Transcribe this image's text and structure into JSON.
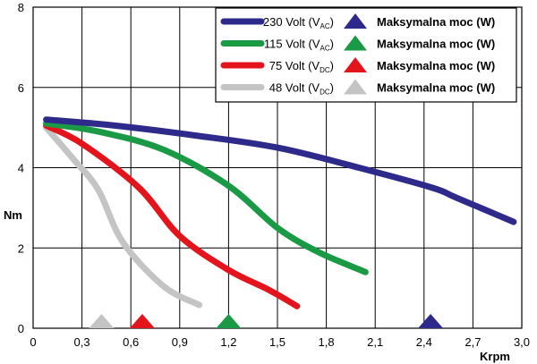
{
  "chart_data": {
    "type": "line",
    "xlabel": "Krpm",
    "ylabel": "Nm",
    "xlim": [
      0,
      3.0
    ],
    "ylim": [
      0,
      8
    ],
    "x_ticks": [
      "0",
      "0,3",
      "0,6",
      "0,9",
      "1,2",
      "1,5",
      "1,8",
      "2,1",
      "2,4",
      "2,7",
      "3,0"
    ],
    "y_ticks": [
      "0",
      "2",
      "4",
      "6",
      "8"
    ],
    "grid": true,
    "legend_position": "top-right",
    "series": [
      {
        "name_main": "230 Volt (V",
        "name_sub": "AC",
        "name_close": ")",
        "marker_label": "Maksymalna moc (W)",
        "color": "#2e2a8c",
        "points": [
          [
            0.08,
            5.2
          ],
          [
            0.5,
            5.05
          ],
          [
            1.0,
            4.8
          ],
          [
            1.5,
            4.5
          ],
          [
            2.0,
            4.0
          ],
          [
            2.45,
            3.5
          ],
          [
            2.6,
            3.25
          ],
          [
            2.95,
            2.65
          ]
        ],
        "max_power_x": 2.44
      },
      {
        "name_main": "115 Volt (V",
        "name_sub": "AC",
        "name_close": ")",
        "marker_label": "Maksymalna moc (W)",
        "color": "#1a9a45",
        "points": [
          [
            0.08,
            5.1
          ],
          [
            0.4,
            4.9
          ],
          [
            0.8,
            4.45
          ],
          [
            1.2,
            3.55
          ],
          [
            1.5,
            2.5
          ],
          [
            1.75,
            1.9
          ],
          [
            2.04,
            1.4
          ]
        ],
        "max_power_x": 1.2
      },
      {
        "name_main": "75 Volt (V",
        "name_sub": "DC",
        "name_close": ")",
        "marker_label": "Maksymalna moc (W)",
        "color": "#e3141c",
        "points": [
          [
            0.08,
            5.05
          ],
          [
            0.3,
            4.6
          ],
          [
            0.65,
            3.5
          ],
          [
            0.9,
            2.3
          ],
          [
            1.2,
            1.45
          ],
          [
            1.45,
            0.95
          ],
          [
            1.62,
            0.55
          ]
        ],
        "max_power_x": 0.67
      },
      {
        "name_main": "48 Volt (V",
        "name_sub": "DC",
        "name_close": ")",
        "marker_label": "Maksymalna moc (W)",
        "color": "#c4c4c4",
        "points": [
          [
            0.08,
            5.0
          ],
          [
            0.25,
            4.2
          ],
          [
            0.4,
            3.45
          ],
          [
            0.55,
            2.15
          ],
          [
            0.8,
            1.05
          ],
          [
            1.02,
            0.58
          ]
        ],
        "max_power_x": 0.42
      }
    ]
  }
}
